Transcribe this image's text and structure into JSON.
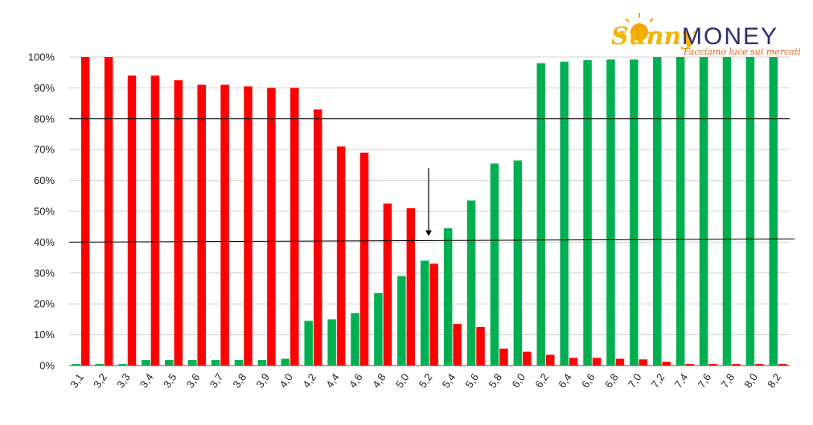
{
  "chart_data": {
    "type": "bar",
    "categories": [
      "3,1",
      "3,2",
      "3,3",
      "3,4",
      "3,5",
      "3,6",
      "3,7",
      "3,8",
      "3,9",
      "4,0",
      "4,2",
      "4,4",
      "4,6",
      "4,8",
      "5,0",
      "5,2",
      "5,4",
      "5,6",
      "5,8",
      "6,0",
      "6,2",
      "6,4",
      "6,6",
      "6,8",
      "7,0",
      "7,2",
      "7,4",
      "7,6",
      "7,8",
      "8,0",
      "8,2"
    ],
    "series": [
      {
        "color": "#00b050",
        "values": [
          0.5,
          0.5,
          0.5,
          1.8,
          1.8,
          1.8,
          1.8,
          1.8,
          1.8,
          2.2,
          14.5,
          15,
          17,
          23.5,
          29,
          34,
          44.5,
          53.5,
          65.5,
          66.5,
          98,
          98.5,
          99,
          99.2,
          99.2,
          100,
          100,
          100,
          100,
          100,
          100
        ]
      },
      {
        "color": "#ff0000",
        "values": [
          100,
          100,
          94,
          94,
          92.5,
          91,
          91,
          90.5,
          90,
          90,
          83,
          71,
          69,
          52.5,
          51,
          33,
          13.5,
          12.5,
          5.5,
          4.5,
          3.5,
          2.5,
          2.5,
          2.2,
          2,
          1.2,
          0.5,
          0.5,
          0.5,
          0.5,
          0.5
        ]
      }
    ],
    "ylim": [
      0,
      100
    ],
    "yticks": [
      "0%",
      "10%",
      "20%",
      "30%",
      "40%",
      "50%",
      "60%",
      "70%",
      "80%",
      "90%",
      "100%"
    ],
    "reference_lines": [
      {
        "y": 80
      },
      {
        "y": 40
      }
    ],
    "annotation": {
      "type": "arrow-down",
      "category": "5,2",
      "from_y": 64,
      "to_y": 42
    },
    "grid": true
  },
  "logo": {
    "sunny": "Sunny",
    "money": "MONEY",
    "tagline": "Facciamo luce sui mercati"
  }
}
